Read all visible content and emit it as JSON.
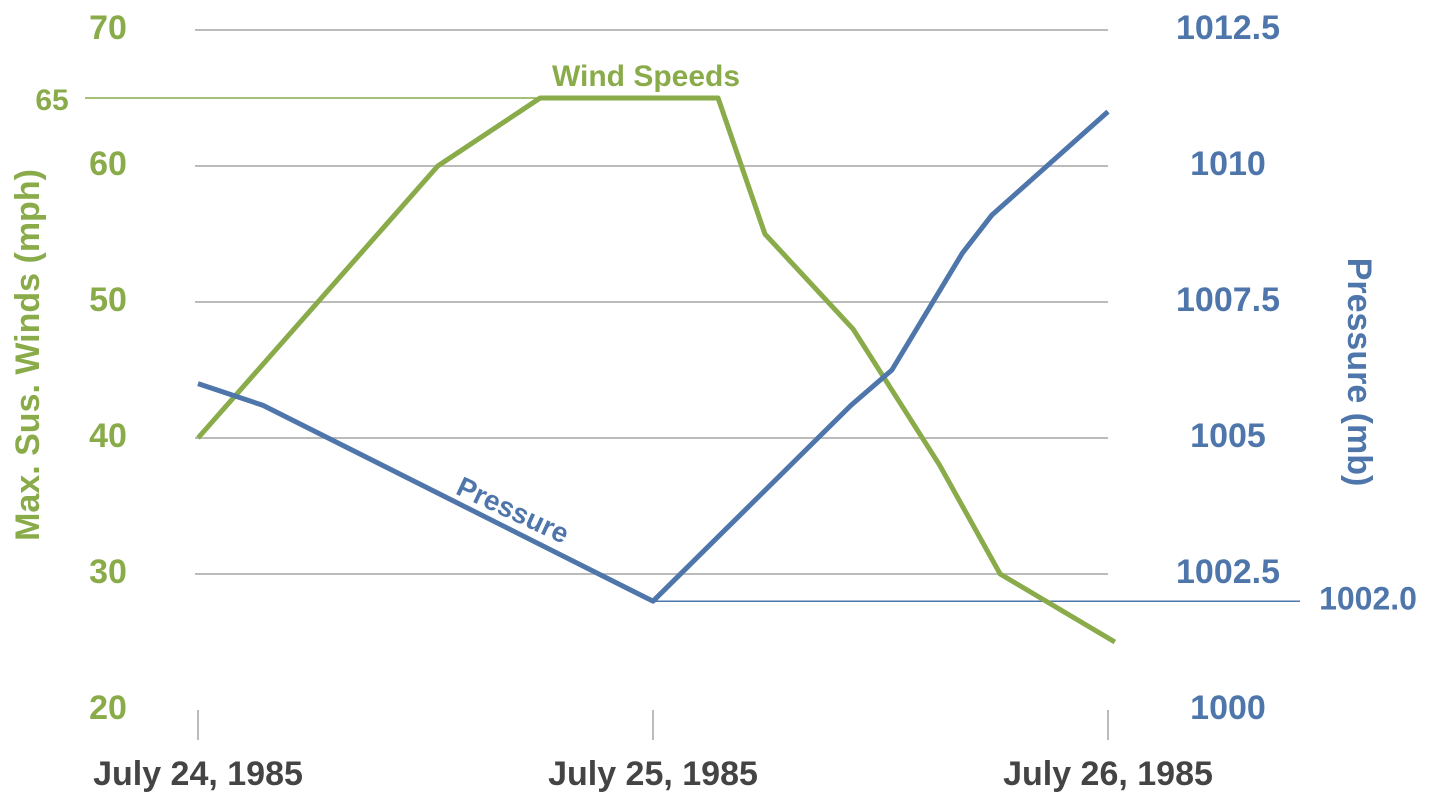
{
  "chart_data": {
    "type": "line",
    "x_label": null,
    "y_label": "Max. Sus. Winds (mph)",
    "y2_label": "Pressure (mb)",
    "xlim": [
      0,
      2
    ],
    "xticks": [
      {
        "value": 0,
        "label": "July 24, 1985"
      },
      {
        "value": 1,
        "label": "July 25, 1985"
      },
      {
        "value": 2,
        "label": "July 26, 1985"
      }
    ],
    "ylim": [
      20,
      70
    ],
    "yticks": [
      20,
      30,
      40,
      50,
      60,
      70
    ],
    "y2lim": [
      1000,
      1012.5
    ],
    "y2ticks": [
      1000,
      1002.5,
      1005,
      1007.5,
      1010,
      1012.5
    ],
    "grid": true,
    "series": [
      {
        "name": "Wind Speeds",
        "color": "#8aab4a",
        "x": [
          0,
          0.527,
          0.752,
          1.143,
          1.246,
          1.44,
          1.63,
          1.763,
          2.015
        ],
        "values": [
          40,
          60,
          65,
          65,
          55,
          48,
          38,
          30,
          25
        ]
      },
      {
        "name": "Pressure",
        "color": "#4e76ab",
        "axis": "y2",
        "x": [
          0,
          0.143,
          1.0,
          1.435,
          1.525,
          1.68,
          1.745,
          2.0
        ],
        "values": [
          1006.0,
          1005.6,
          1002.0,
          1005.6,
          1006.25,
          1008.4,
          1009.1,
          1011.0
        ]
      }
    ],
    "reference_lines": [
      {
        "axis": "y",
        "value": 65,
        "label": "65"
      },
      {
        "axis": "y2",
        "value": 1002,
        "label": "1002.0"
      }
    ]
  }
}
